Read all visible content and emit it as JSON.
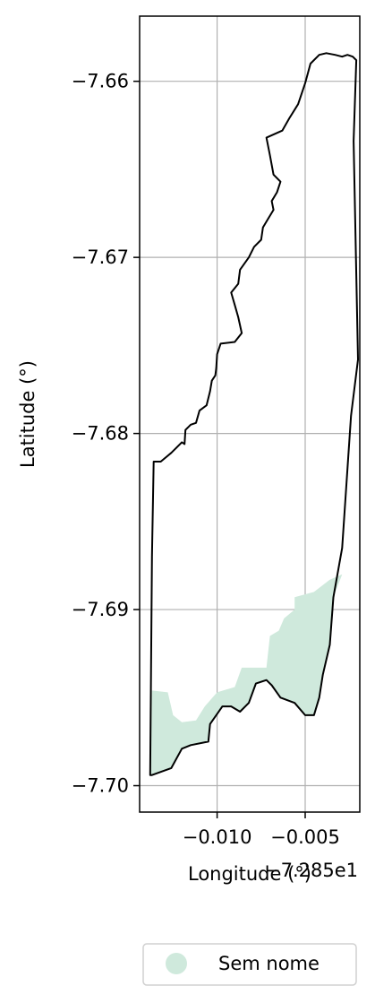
{
  "chart_data": {
    "type": "map",
    "xlabel": "Longitude (°)",
    "ylabel": "Latitude (°)",
    "offset_label": "−7.285e1",
    "xlim": [
      -0.0144,
      -0.0019
    ],
    "ylim": [
      -7.7015,
      -7.6563
    ],
    "xticks": [
      -0.01,
      -0.005
    ],
    "xtick_labels": [
      "−0.010",
      "−0.005"
    ],
    "yticks": [
      -7.66,
      -7.67,
      -7.68,
      -7.69,
      -7.7
    ],
    "ytick_labels": [
      "−7.66",
      "−7.67",
      "−7.68",
      "−7.69",
      "−7.70"
    ],
    "grid": true,
    "legend": {
      "placement": "bottom-right",
      "entries": [
        {
          "label": "Sem nome",
          "color": "#cfe9dc"
        }
      ]
    },
    "boundary_color": "#000000",
    "fill_color": "#cfe9dc",
    "boundary": [
      [
        -0.0136,
        -7.6816
      ],
      [
        -0.0132,
        -7.6816
      ],
      [
        -0.0126,
        -7.6811
      ],
      [
        -0.0123,
        -7.6808
      ],
      [
        -0.012,
        -7.6805
      ],
      [
        -0.01185,
        -7.6806
      ],
      [
        -0.0118,
        -7.6798
      ],
      [
        -0.0115,
        -7.6795
      ],
      [
        -0.0112,
        -7.6794
      ],
      [
        -0.011,
        -7.6787
      ],
      [
        -0.0106,
        -7.6784
      ],
      [
        -0.0104,
        -7.6776
      ],
      [
        -0.0103,
        -7.677
      ],
      [
        -0.0101,
        -7.6767
      ],
      [
        -0.01005,
        -7.6763
      ],
      [
        -0.01,
        -7.6755
      ],
      [
        -0.0098,
        -7.6749
      ],
      [
        -0.009,
        -7.6748
      ],
      [
        -0.0086,
        -7.6743
      ],
      [
        -0.0088,
        -7.6734
      ],
      [
        -0.009,
        -7.6727
      ],
      [
        -0.0092,
        -7.672
      ],
      [
        -0.0088,
        -7.6715
      ],
      [
        -0.0087,
        -7.6707
      ],
      [
        -0.0082,
        -7.67
      ],
      [
        -0.0079,
        -7.6694
      ],
      [
        -0.0075,
        -7.669
      ],
      [
        -0.0074,
        -7.6683
      ],
      [
        -0.0071,
        -7.6678
      ],
      [
        -0.0068,
        -7.6673
      ],
      [
        -0.0069,
        -7.6668
      ],
      [
        -0.0066,
        -7.6663
      ],
      [
        -0.0064,
        -7.6657
      ],
      [
        -0.0068,
        -7.6653
      ],
      [
        -0.007,
        -7.6642
      ],
      [
        -0.0072,
        -7.6632
      ],
      [
        -0.0063,
        -7.6628
      ],
      [
        -0.0059,
        -7.6621
      ],
      [
        -0.0054,
        -7.6613
      ],
      [
        -0.005,
        -7.6601
      ],
      [
        -0.0047,
        -7.659
      ],
      [
        -0.0042,
        -7.6585
      ],
      [
        -0.0038,
        -7.6584
      ],
      [
        -0.0033,
        -7.6585
      ],
      [
        -0.0029,
        -7.6586
      ],
      [
        -0.0026,
        -7.6585
      ],
      [
        -0.0023,
        -7.6586
      ],
      [
        -0.0021,
        -7.6588
      ],
      [
        -0.00225,
        -7.6634
      ],
      [
        -0.002,
        -7.6758
      ],
      [
        -0.0024,
        -7.679
      ],
      [
        -0.0029,
        -7.6865
      ],
      [
        -0.0034,
        -7.6893
      ],
      [
        -0.0036,
        -7.692
      ],
      [
        -0.004,
        -7.6937
      ],
      [
        -0.0042,
        -7.695
      ],
      [
        -0.0045,
        -7.696
      ],
      [
        -0.005,
        -7.696
      ],
      [
        -0.0056,
        -7.6953
      ],
      [
        -0.0064,
        -7.695
      ],
      [
        -0.0069,
        -7.6943
      ],
      [
        -0.0072,
        -7.694
      ],
      [
        -0.0078,
        -7.6942
      ],
      [
        -0.0082,
        -7.6953
      ],
      [
        -0.0087,
        -7.6958
      ],
      [
        -0.0092,
        -7.6955
      ],
      [
        -0.0097,
        -7.6955
      ],
      [
        -0.0104,
        -7.6965
      ],
      [
        -0.0105,
        -7.6975
      ],
      [
        -0.0115,
        -7.6977
      ],
      [
        -0.012,
        -7.6979
      ],
      [
        -0.0126,
        -7.699
      ],
      [
        -0.0137,
        -7.6994
      ],
      [
        -0.0138,
        -7.6994
      ],
      [
        -0.0137,
        -7.687
      ],
      [
        -0.0136,
        -7.6816
      ]
    ],
    "fill_region": [
      [
        -0.0137,
        -7.6946
      ],
      [
        -0.0128,
        -7.6947
      ],
      [
        -0.0125,
        -7.696
      ],
      [
        -0.012,
        -7.6964
      ],
      [
        -0.0112,
        -7.6963
      ],
      [
        -0.0107,
        -7.6955
      ],
      [
        -0.01,
        -7.6947
      ],
      [
        -0.009,
        -7.6944
      ],
      [
        -0.0086,
        -7.6933
      ],
      [
        -0.0072,
        -7.6933
      ],
      [
        -0.007,
        -7.6915
      ],
      [
        -0.0065,
        -7.6912
      ],
      [
        -0.0062,
        -7.6905
      ],
      [
        -0.0056,
        -7.69
      ],
      [
        -0.0056,
        -7.6893
      ],
      [
        -0.0045,
        -7.689
      ],
      [
        -0.0036,
        -7.6883
      ],
      [
        -0.0029,
        -7.688
      ],
      [
        -0.0034,
        -7.6893
      ],
      [
        -0.0036,
        -7.692
      ],
      [
        -0.004,
        -7.6937
      ],
      [
        -0.0042,
        -7.695
      ],
      [
        -0.0045,
        -7.696
      ],
      [
        -0.005,
        -7.696
      ],
      [
        -0.0056,
        -7.6953
      ],
      [
        -0.0064,
        -7.695
      ],
      [
        -0.0069,
        -7.6943
      ],
      [
        -0.0072,
        -7.694
      ],
      [
        -0.0078,
        -7.6942
      ],
      [
        -0.0082,
        -7.6953
      ],
      [
        -0.0087,
        -7.6958
      ],
      [
        -0.0092,
        -7.6955
      ],
      [
        -0.0097,
        -7.6955
      ],
      [
        -0.0104,
        -7.6965
      ],
      [
        -0.0105,
        -7.6975
      ],
      [
        -0.0115,
        -7.6977
      ],
      [
        -0.012,
        -7.6979
      ],
      [
        -0.0126,
        -7.699
      ],
      [
        -0.0137,
        -7.6994
      ],
      [
        -0.0138,
        -7.6994
      ],
      [
        -0.0137,
        -7.6946
      ]
    ]
  }
}
